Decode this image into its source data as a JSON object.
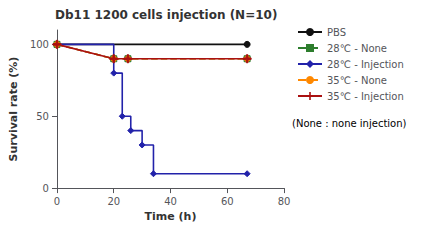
{
  "chart_data": {
    "type": "line",
    "title": "Db11 1200 cells injection (N=10)",
    "x_label": "Time (h)",
    "y_label": "Survival rate (%)",
    "xlim": [
      0,
      80
    ],
    "ylim": [
      0,
      110
    ],
    "xticks": [
      0,
      20,
      40,
      60,
      80
    ],
    "yticks": [
      0,
      50,
      100
    ],
    "grid": false,
    "legend": "right",
    "annotations": [
      "(None : none injection)"
    ],
    "series": [
      {
        "name": "PBS",
        "type": "line",
        "color": "#111111",
        "line_style": "solid",
        "marker": "circle",
        "x": [
          0,
          67
        ],
        "values": [
          100,
          100
        ]
      },
      {
        "name": "28℃ - None",
        "type": "line",
        "color": "#2d7d2d",
        "line_style": "dashed",
        "marker": "square",
        "x": [
          0,
          20,
          25,
          67
        ],
        "values": [
          100,
          90,
          90,
          90
        ]
      },
      {
        "name": "28℃ - Injection",
        "type": "step",
        "color": "#2222aa",
        "line_style": "solid",
        "marker": "diamond",
        "x": [
          0,
          20,
          23,
          26,
          30,
          34,
          67
        ],
        "values": [
          100,
          80,
          50,
          40,
          30,
          10,
          10
        ]
      },
      {
        "name": "35℃ - None",
        "type": "line",
        "color": "#ff8800",
        "line_style": "dashed",
        "marker": "circle",
        "x": [
          0,
          20,
          25,
          67
        ],
        "values": [
          100,
          90,
          90,
          90
        ]
      },
      {
        "name": "35℃ - Injection",
        "type": "line",
        "color": "#aa1111",
        "line_style": "solid",
        "marker": "plus",
        "x": [
          0,
          20,
          25,
          67
        ],
        "values": [
          100,
          90,
          90,
          90
        ]
      }
    ]
  }
}
